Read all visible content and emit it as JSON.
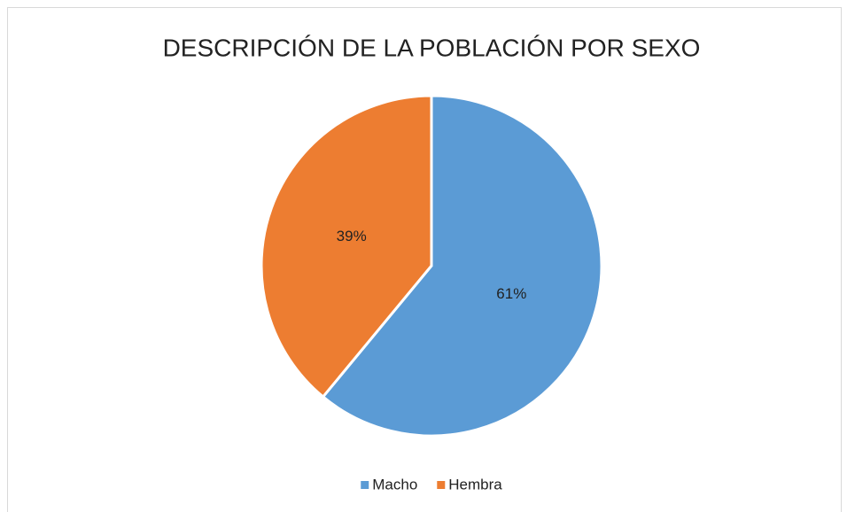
{
  "chart_data": {
    "type": "pie",
    "title": "DESCRIPCIÓN DE LA POBLACIÓN POR SEXO",
    "categories": [
      "Macho",
      "Hembra"
    ],
    "values": [
      61,
      39
    ],
    "value_labels": [
      "61%",
      "39%"
    ],
    "colors": [
      "#5b9bd5",
      "#ed7d31"
    ],
    "legend": "bottom"
  }
}
